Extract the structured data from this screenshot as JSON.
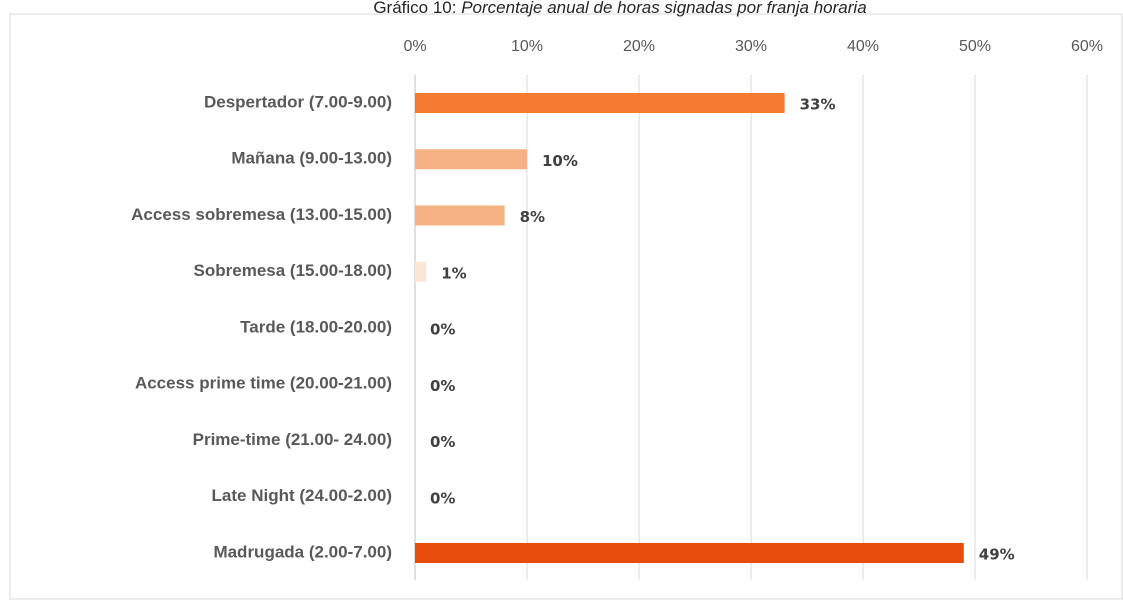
{
  "chart_data": {
    "type": "bar",
    "orientation": "horizontal",
    "title_number": "Gráfico 10:",
    "title": "Porcentaje anual de horas signadas por franja horaria",
    "categories": [
      "Despertador (7.00-9.00)",
      "Mañana (9.00-13.00)",
      "Access sobremesa (13.00-15.00)",
      "Sobremesa (15.00-18.00)",
      "Tarde  (18.00-20.00)",
      "Access prime time (20.00-21.00)",
      "Prime-time (21.00- 24.00)",
      "Late Night (24.00-2.00)",
      "Madrugada (2.00-7.00)"
    ],
    "values": [
      33,
      10,
      8,
      1,
      0,
      0,
      0,
      0,
      49
    ],
    "value_labels": [
      "33%",
      "10%",
      "8%",
      "1%",
      "0%",
      "0%",
      "0%",
      "0%",
      "49%"
    ],
    "colors": [
      "#f47a2f",
      "#f4b183",
      "#f4b183",
      "#fbe5d6",
      "#fbe5d6",
      "#fbe5d6",
      "#fbe5d6",
      "#fbe5d6",
      "#e84c0b"
    ],
    "xlim": [
      0,
      60
    ],
    "xticks": [
      {
        "value": 0,
        "label": "0%"
      },
      {
        "value": 10,
        "label": "10%"
      },
      {
        "value": 20,
        "label": "20%"
      },
      {
        "value": 30,
        "label": "30%"
      },
      {
        "value": 40,
        "label": "40%"
      },
      {
        "value": 50,
        "label": "50%"
      },
      {
        "value": 60,
        "label": "60%"
      }
    ],
    "grid": true
  }
}
